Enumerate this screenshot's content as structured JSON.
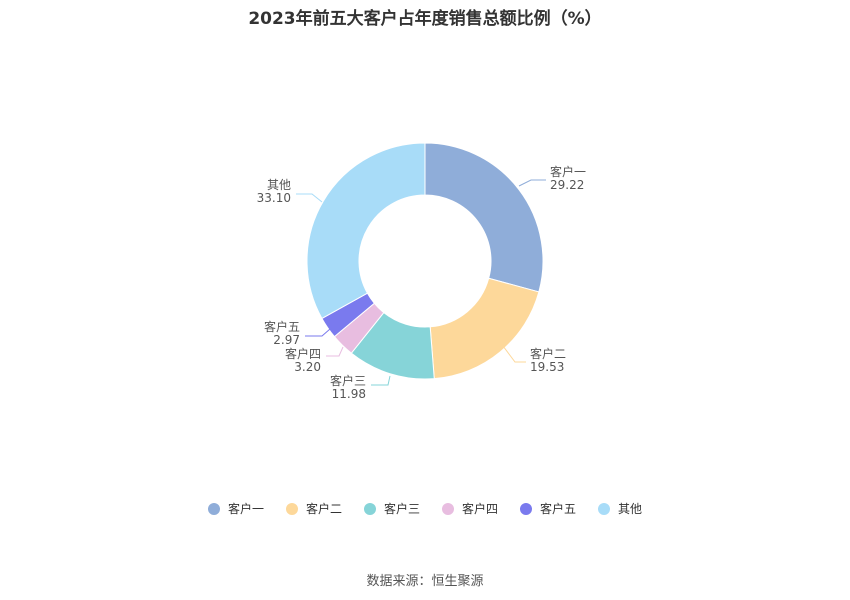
{
  "source": "数据来源：恒生聚源",
  "chart_data": {
    "type": "pie",
    "title": "2023年前五大客户占年度销售总额比例（%）",
    "categories": [
      "客户一",
      "客户二",
      "客户三",
      "客户四",
      "客户五",
      "其他"
    ],
    "values": [
      29.22,
      19.53,
      11.98,
      3.2,
      2.97,
      33.1
    ],
    "value_labels": [
      "29.22",
      "19.53",
      "11.98",
      "3.20",
      "2.97",
      "33.10"
    ],
    "colors": [
      "#8fadd9",
      "#fdd89a",
      "#86d4d8",
      "#e8bde0",
      "#7a7aee",
      "#a8dcf8"
    ],
    "legend_position": "bottom"
  }
}
